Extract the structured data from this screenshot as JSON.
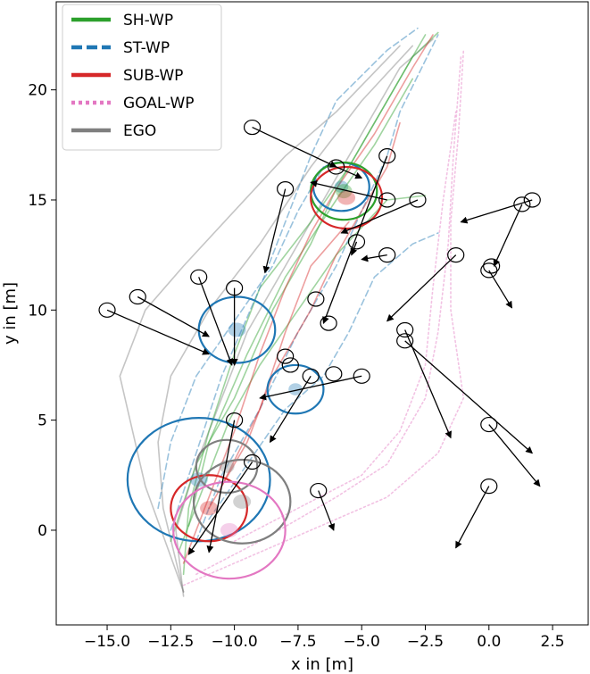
{
  "chart_data": {
    "type": "line",
    "xlabel": "x in [m]",
    "ylabel": "y in [m]",
    "xlim": [
      -17.0,
      3.9
    ],
    "ylim": [
      -4.3,
      24.0
    ],
    "xticks": [
      -15.0,
      -12.5,
      -10.0,
      -7.5,
      -5.0,
      -2.5,
      0.0,
      2.5
    ],
    "xtick_labels": [
      "−15.0",
      "−12.5",
      "−10.0",
      "−7.5",
      "−5.0",
      "−2.5",
      "0.0",
      "2.5"
    ],
    "yticks": [
      0,
      5,
      10,
      15,
      20
    ],
    "ytick_labels": [
      "0",
      "5",
      "10",
      "15",
      "20"
    ],
    "grid": false,
    "legend": {
      "placement": "top-left",
      "entries": [
        {
          "label": "SH-WP",
          "color": "#2ca02c",
          "style": "solid"
        },
        {
          "label": "ST-WP",
          "color": "#1f77b4",
          "style": "dashed"
        },
        {
          "label": "SUB-WP",
          "color": "#d62728",
          "style": "solid"
        },
        {
          "label": "GOAL-WP",
          "color": "#e377c2",
          "style": "dotted"
        },
        {
          "label": "EGO",
          "color": "#7f7f7f",
          "style": "solid"
        }
      ]
    },
    "series": [
      {
        "group": "EGO",
        "color": "#7f7f7f",
        "style": "solid",
        "points": [
          [
            -12.0,
            -3.0
          ],
          [
            -12.3,
            0.0
          ],
          [
            -11.5,
            3.0
          ],
          [
            -10.5,
            6.0
          ],
          [
            -9.5,
            9.0
          ],
          [
            -8.0,
            12.0
          ],
          [
            -6.5,
            15.0
          ],
          [
            -5.0,
            18.0
          ],
          [
            -3.5,
            21.0
          ],
          [
            -2.2,
            22.3
          ]
        ]
      },
      {
        "group": "EGO",
        "color": "#7f7f7f",
        "style": "solid",
        "points": [
          [
            -12.0,
            -2.8
          ],
          [
            -12.8,
            1.0
          ],
          [
            -13.0,
            4.0
          ],
          [
            -12.5,
            7.0
          ],
          [
            -11.0,
            10.0
          ],
          [
            -9.0,
            13.0
          ],
          [
            -7.0,
            16.5
          ],
          [
            -5.0,
            19.5
          ],
          [
            -3.0,
            22.0
          ]
        ]
      },
      {
        "group": "EGO",
        "color": "#7f7f7f",
        "style": "solid",
        "points": [
          [
            -12.0,
            -2.8
          ],
          [
            -13.5,
            2.0
          ],
          [
            -14.5,
            7.0
          ],
          [
            -13.5,
            10.0
          ],
          [
            -12.0,
            12.0
          ],
          [
            -10.0,
            14.5
          ],
          [
            -8.0,
            17.0
          ],
          [
            -6.0,
            19.0
          ],
          [
            -3.5,
            22.0
          ]
        ]
      },
      {
        "group": "SH-WP",
        "color": "#2ca02c",
        "style": "solid",
        "points": [
          [
            -12.0,
            -2.0
          ],
          [
            -11.8,
            1.0
          ],
          [
            -11.0,
            4.5
          ],
          [
            -10.0,
            8.0
          ],
          [
            -9.0,
            11.0
          ],
          [
            -7.0,
            14.0
          ],
          [
            -5.5,
            16.5
          ],
          [
            -4.0,
            19.5
          ],
          [
            -2.5,
            22.5
          ]
        ]
      },
      {
        "group": "SH-WP",
        "color": "#2ca02c",
        "style": "solid",
        "points": [
          [
            -12.5,
            -0.5
          ],
          [
            -11.5,
            3.0
          ],
          [
            -10.0,
            6.0
          ],
          [
            -8.5,
            10.0
          ],
          [
            -7.0,
            13.0
          ],
          [
            -6.0,
            15.5
          ],
          [
            -4.5,
            18.5
          ],
          [
            -3.0,
            21.5
          ],
          [
            -2.0,
            22.6
          ]
        ]
      },
      {
        "group": "SH-WP",
        "color": "#2ca02c",
        "style": "solid",
        "points": [
          [
            -11.8,
            0.2
          ],
          [
            -11.0,
            4.0
          ],
          [
            -9.5,
            8.0
          ],
          [
            -8.0,
            11.5
          ],
          [
            -6.0,
            15.0
          ],
          [
            -4.5,
            17.5
          ],
          [
            -3.0,
            20.5
          ]
        ]
      },
      {
        "group": "SH-WP",
        "color": "#2ca02c",
        "style": "solid",
        "points": [
          [
            -12.2,
            -1.0
          ],
          [
            -11.2,
            2.0
          ],
          [
            -10.2,
            5.0
          ],
          [
            -9.0,
            7.5
          ],
          [
            -7.5,
            10.0
          ],
          [
            -6.0,
            12.5
          ],
          [
            -4.0,
            15.0
          ],
          [
            -2.5,
            15.2
          ]
        ]
      },
      {
        "group": "ST-WP",
        "color": "#1f77b4",
        "style": "dashed",
        "points": [
          [
            -12.5,
            0.0
          ],
          [
            -11.5,
            3.5
          ],
          [
            -10.5,
            7.0
          ],
          [
            -9.0,
            11.0
          ],
          [
            -8.0,
            14.0
          ],
          [
            -7.0,
            17.0
          ],
          [
            -6.0,
            19.5
          ],
          [
            -4.0,
            21.8
          ],
          [
            -2.8,
            22.8
          ]
        ]
      },
      {
        "group": "ST-WP",
        "color": "#1f77b4",
        "style": "dashed",
        "points": [
          [
            -11.5,
            -0.5
          ],
          [
            -10.5,
            2.5
          ],
          [
            -9.0,
            5.5
          ],
          [
            -7.5,
            9.0
          ],
          [
            -6.0,
            12.0
          ],
          [
            -5.0,
            14.5
          ],
          [
            -4.0,
            17.0
          ],
          [
            -3.5,
            19.0
          ],
          [
            -2.0,
            22.5
          ]
        ]
      },
      {
        "group": "ST-WP",
        "color": "#1f77b4",
        "style": "dashed",
        "points": [
          [
            -13.0,
            1.0
          ],
          [
            -12.5,
            4.0
          ],
          [
            -11.5,
            7.0
          ],
          [
            -10.0,
            9.5
          ],
          [
            -8.5,
            12.0
          ],
          [
            -7.5,
            14.5
          ],
          [
            -6.5,
            16.5
          ]
        ]
      },
      {
        "group": "ST-WP",
        "color": "#1f77b4",
        "style": "dashed",
        "points": [
          [
            -11.0,
            0.5
          ],
          [
            -9.5,
            3.0
          ],
          [
            -8.0,
            5.5
          ],
          [
            -6.5,
            7.0
          ],
          [
            -5.5,
            9.0
          ],
          [
            -4.5,
            11.5
          ],
          [
            -3.0,
            13.0
          ],
          [
            -2.0,
            13.5
          ]
        ]
      },
      {
        "group": "SUB-WP",
        "color": "#d62728",
        "style": "solid",
        "points": [
          [
            -12.0,
            -1.5
          ],
          [
            -11.0,
            1.5
          ],
          [
            -10.0,
            4.5
          ],
          [
            -9.0,
            8.0
          ],
          [
            -8.0,
            11.0
          ],
          [
            -7.0,
            13.5
          ],
          [
            -6.0,
            15.5
          ],
          [
            -4.5,
            18.0
          ],
          [
            -3.0,
            21.0
          ],
          [
            -2.2,
            22.5
          ]
        ]
      },
      {
        "group": "SUB-WP",
        "color": "#d62728",
        "style": "solid",
        "points": [
          [
            -11.0,
            1.0
          ],
          [
            -9.5,
            4.0
          ],
          [
            -8.5,
            7.0
          ],
          [
            -7.0,
            10.0
          ],
          [
            -6.0,
            12.5
          ],
          [
            -5.0,
            14.5
          ],
          [
            -4.0,
            16.5
          ],
          [
            -3.5,
            18.5
          ]
        ]
      },
      {
        "group": "SUB-WP",
        "color": "#d62728",
        "style": "solid",
        "points": [
          [
            -10.5,
            2.0
          ],
          [
            -9.0,
            5.5
          ],
          [
            -8.0,
            9.0
          ],
          [
            -7.0,
            12.0
          ],
          [
            -5.5,
            14.0
          ]
        ]
      },
      {
        "group": "GOAL-WP",
        "color": "#e377c2",
        "style": "dotted",
        "points": [
          [
            -12.0,
            -2.5
          ],
          [
            -10.0,
            -1.5
          ],
          [
            -7.0,
            0.0
          ],
          [
            -4.0,
            1.5
          ],
          [
            -2.0,
            3.5
          ],
          [
            -1.0,
            6.0
          ],
          [
            -1.5,
            10.0
          ],
          [
            -1.5,
            14.0
          ],
          [
            -1.2,
            18.0
          ],
          [
            -1.0,
            21.8
          ]
        ]
      },
      {
        "group": "GOAL-WP",
        "color": "#e377c2",
        "style": "dotted",
        "points": [
          [
            -11.5,
            -2.0
          ],
          [
            -9.0,
            -0.5
          ],
          [
            -6.0,
            1.5
          ],
          [
            -4.0,
            3.0
          ],
          [
            -2.5,
            6.0
          ],
          [
            -2.0,
            9.0
          ],
          [
            -1.6,
            13.0
          ],
          [
            -1.4,
            17.0
          ],
          [
            -1.1,
            21.5
          ]
        ]
      },
      {
        "group": "GOAL-WP",
        "color": "#e377c2",
        "style": "dotted",
        "points": [
          [
            -10.0,
            -0.5
          ],
          [
            -7.5,
            1.0
          ],
          [
            -5.0,
            2.5
          ],
          [
            -3.5,
            4.5
          ],
          [
            -2.5,
            7.5
          ],
          [
            -2.2,
            11.0
          ],
          [
            -1.8,
            15.0
          ],
          [
            -1.3,
            19.0
          ]
        ]
      }
    ],
    "uncertainty_circles": [
      {
        "group": "ST-WP",
        "color": "#1f77b4",
        "cx": -11.4,
        "cy": 2.3,
        "r": 2.8
      },
      {
        "group": "ST-WP",
        "color": "#1f77b4",
        "cx": -9.9,
        "cy": 9.1,
        "r": 1.5
      },
      {
        "group": "ST-WP",
        "color": "#1f77b4",
        "cx": -7.6,
        "cy": 6.4,
        "r": 1.1
      },
      {
        "group": "ST-WP",
        "color": "#1f77b4",
        "cx": -5.8,
        "cy": 15.6,
        "r": 1.1
      },
      {
        "group": "SH-WP",
        "color": "#2ca02c",
        "cx": -5.7,
        "cy": 15.4,
        "r": 1.3
      },
      {
        "group": "SUB-WP",
        "color": "#d62728",
        "cx": -5.6,
        "cy": 15.1,
        "r": 1.4
      },
      {
        "group": "SUB-WP",
        "color": "#d62728",
        "cx": -11.0,
        "cy": 1.0,
        "r": 1.5
      },
      {
        "group": "EGO",
        "color": "#7f7f7f",
        "cx": -9.7,
        "cy": 1.3,
        "r": 1.9
      },
      {
        "group": "EGO",
        "color": "#7f7f7f",
        "cx": -10.3,
        "cy": 2.9,
        "r": 1.2
      },
      {
        "group": "GOAL-WP",
        "color": "#e377c2",
        "cx": -10.2,
        "cy": 0.0,
        "r": 2.2
      }
    ],
    "agents": [
      {
        "x": -9.3,
        "y": 18.3,
        "dx": 3.3,
        "dy": -1.8
      },
      {
        "x": -4.0,
        "y": 17.0,
        "dx": -2.5,
        "dy": -7.6
      },
      {
        "x": -6.0,
        "y": 16.5,
        "dx": 1.0,
        "dy": -0.5
      },
      {
        "x": -8.0,
        "y": 15.5,
        "dx": -0.8,
        "dy": -3.8
      },
      {
        "x": -2.8,
        "y": 15.0,
        "dx": -3.0,
        "dy": -1.5
      },
      {
        "x": -4.0,
        "y": 15.0,
        "dx": -3.0,
        "dy": 0.8
      },
      {
        "x": 1.7,
        "y": 15.0,
        "dx": -2.8,
        "dy": -1.0
      },
      {
        "x": 1.3,
        "y": 14.8,
        "dx": -1.1,
        "dy": -2.8
      },
      {
        "x": -5.2,
        "y": 13.1,
        "dx": -0.2,
        "dy": -0.6
      },
      {
        "x": -4.0,
        "y": 12.5,
        "dx": -1.0,
        "dy": -0.2
      },
      {
        "x": -1.3,
        "y": 12.5,
        "dx": -2.7,
        "dy": -3.0
      },
      {
        "x": 0.1,
        "y": 12.0,
        "dx": 0.0,
        "dy": 0.0
      },
      {
        "x": 0.0,
        "y": 11.8,
        "dx": 0.9,
        "dy": -1.7
      },
      {
        "x": -11.4,
        "y": 11.5,
        "dx": 1.3,
        "dy": -4.0
      },
      {
        "x": -10.0,
        "y": 11.0,
        "dx": 0.0,
        "dy": -3.5
      },
      {
        "x": -13.8,
        "y": 10.6,
        "dx": 2.8,
        "dy": -1.8
      },
      {
        "x": -6.8,
        "y": 10.5,
        "dx": 0.0,
        "dy": 0.0
      },
      {
        "x": -15.0,
        "y": 10.0,
        "dx": 4.0,
        "dy": -2.0
      },
      {
        "x": -6.3,
        "y": 9.4,
        "dx": 0.0,
        "dy": 0.0
      },
      {
        "x": -3.3,
        "y": 9.1,
        "dx": 1.8,
        "dy": -4.9
      },
      {
        "x": -3.3,
        "y": 8.6,
        "dx": 5.0,
        "dy": -5.1
      },
      {
        "x": -8.0,
        "y": 7.9,
        "dx": 0.0,
        "dy": 0.0
      },
      {
        "x": -7.8,
        "y": 7.5,
        "dx": 0.0,
        "dy": 0.0
      },
      {
        "x": -6.1,
        "y": 7.1,
        "dx": 0.0,
        "dy": 0.0
      },
      {
        "x": -7.0,
        "y": 7.0,
        "dx": -1.6,
        "dy": -3.0
      },
      {
        "x": -5.0,
        "y": 7.0,
        "dx": -4.0,
        "dy": -1.0
      },
      {
        "x": -10.0,
        "y": 5.0,
        "dx": -1.0,
        "dy": -6.0
      },
      {
        "x": -9.3,
        "y": 3.1,
        "dx": -2.5,
        "dy": -4.2
      },
      {
        "x": 0.0,
        "y": 4.8,
        "dx": 2.0,
        "dy": -2.8
      },
      {
        "x": -6.7,
        "y": 1.8,
        "dx": 0.6,
        "dy": -1.8
      },
      {
        "x": 0.0,
        "y": 2.0,
        "dx": -1.3,
        "dy": -2.8
      }
    ]
  }
}
